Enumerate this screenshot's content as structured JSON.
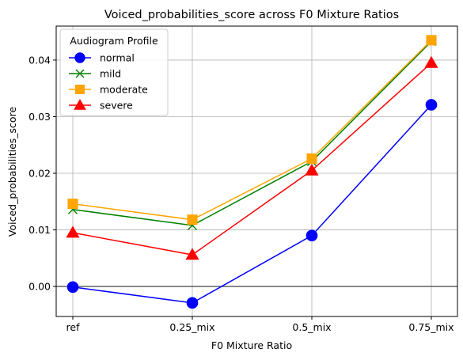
{
  "chart_data": {
    "type": "line",
    "title": "Voiced_probabilities_score across F0 Mixture Ratios",
    "xlabel": "F0 Mixture Ratio",
    "ylabel": "Voiced_probabilities_score",
    "categories": [
      "ref",
      "0.25_mix",
      "0.5_mix",
      "0.75_mix"
    ],
    "ylim": [
      -0.0053,
      0.046
    ],
    "yticks": [
      0.0,
      0.01,
      0.02,
      0.03,
      0.04
    ],
    "ytick_labels": [
      "0.00",
      "0.01",
      "0.02",
      "0.03",
      "0.04"
    ],
    "grid": true,
    "reference_line": 0.0,
    "legend": {
      "title": "Audiogram Profile",
      "position": "top-left"
    },
    "series": [
      {
        "name": "normal",
        "color": "#0000ff",
        "marker": "circle",
        "values": [
          -0.0001,
          -0.0029,
          0.009,
          0.0321
        ]
      },
      {
        "name": "mild",
        "color": "#008000",
        "marker": "x",
        "values": [
          0.0136,
          0.0108,
          0.0221,
          0.0433
        ]
      },
      {
        "name": "moderate",
        "color": "#ffa500",
        "marker": "square",
        "values": [
          0.0146,
          0.0118,
          0.0226,
          0.0435
        ]
      },
      {
        "name": "severe",
        "color": "#ff0000",
        "marker": "triangle",
        "values": [
          0.0095,
          0.0056,
          0.0205,
          0.0395
        ]
      }
    ]
  }
}
